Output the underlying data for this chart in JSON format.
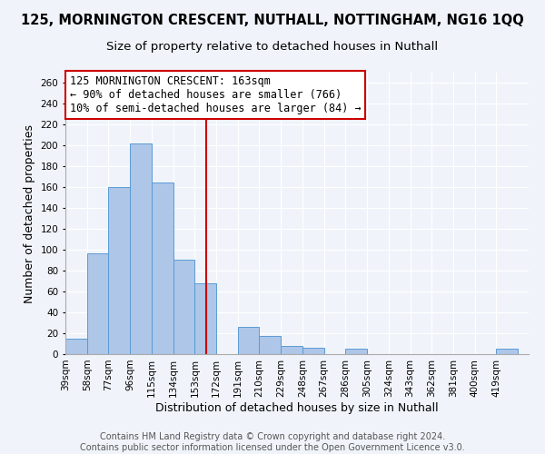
{
  "title": "125, MORNINGTON CRESCENT, NUTHALL, NOTTINGHAM, NG16 1QQ",
  "subtitle": "Size of property relative to detached houses in Nuthall",
  "xlabel": "Distribution of detached houses by size in Nuthall",
  "ylabel": "Number of detached properties",
  "bin_labels": [
    "39sqm",
    "58sqm",
    "77sqm",
    "96sqm",
    "115sqm",
    "134sqm",
    "153sqm",
    "172sqm",
    "191sqm",
    "210sqm",
    "229sqm",
    "248sqm",
    "267sqm",
    "286sqm",
    "305sqm",
    "324sqm",
    "343sqm",
    "362sqm",
    "381sqm",
    "400sqm",
    "419sqm"
  ],
  "bar_heights": [
    15,
    97,
    160,
    202,
    165,
    91,
    68,
    0,
    26,
    17,
    8,
    6,
    0,
    5,
    0,
    0,
    0,
    0,
    0,
    0,
    5
  ],
  "bin_edges": [
    39,
    58,
    77,
    96,
    115,
    134,
    153,
    172,
    191,
    210,
    229,
    248,
    267,
    286,
    305,
    324,
    343,
    362,
    381,
    400,
    419,
    438
  ],
  "bar_color": "#aec6e8",
  "bar_edge_color": "#5b9bd5",
  "reference_line_x": 163,
  "reference_line_color": "#cc0000",
  "annotation_line1": "125 MORNINGTON CRESCENT: 163sqm",
  "annotation_line2": "← 90% of detached houses are smaller (766)",
  "annotation_line3": "10% of semi-detached houses are larger (84) →",
  "annotation_box_color": "#ffffff",
  "annotation_box_edge_color": "#cc0000",
  "ylim": [
    0,
    270
  ],
  "yticks": [
    0,
    20,
    40,
    60,
    80,
    100,
    120,
    140,
    160,
    180,
    200,
    220,
    240,
    260
  ],
  "footer_line1": "Contains HM Land Registry data © Crown copyright and database right 2024.",
  "footer_line2": "Contains public sector information licensed under the Open Government Licence v3.0.",
  "background_color": "#f0f4fa",
  "grid_color": "#ffffff",
  "title_fontsize": 10.5,
  "subtitle_fontsize": 9.5,
  "axis_label_fontsize": 9,
  "tick_fontsize": 7.5,
  "annotation_fontsize": 8.5,
  "footer_fontsize": 7
}
